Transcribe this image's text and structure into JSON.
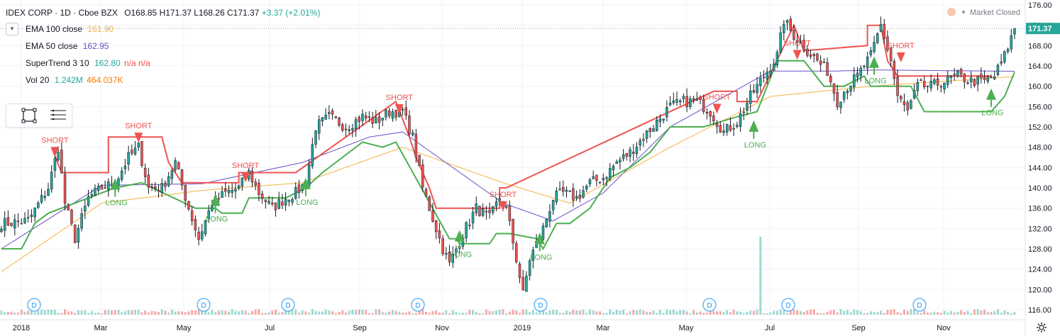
{
  "header": {
    "symbol": "IDEX CORP · 1D · Cboe BZX",
    "open": "O168.85",
    "high": "H171.37",
    "low": "L168.26",
    "close": "C171.37",
    "change": "+3.37 (+2.01%)",
    "status": "Market Closed"
  },
  "indicators": [
    {
      "name": "EMA 100 close",
      "value": "161.90",
      "color": "#f5b342"
    },
    {
      "name": "EMA 50 close",
      "value": "162.95",
      "color": "#6a4fc8"
    },
    {
      "name": "SuperTrend 3 10",
      "value": "162.80",
      "extra": "n/a n/a",
      "color": "#26a69a",
      "extra_color": "#ef5350"
    },
    {
      "name": "Vol 20",
      "value": "1.242M",
      "value2": "464.037K",
      "color": "#26a69a",
      "value2_color": "#f57c00"
    }
  ],
  "price_axis": {
    "ticks": [
      "176.00",
      "172.00",
      "168.00",
      "164.00",
      "160.00",
      "156.00",
      "152.00",
      "148.00",
      "144.00",
      "140.00",
      "136.00",
      "132.00",
      "128.00",
      "124.00",
      "120.00",
      "116.00"
    ],
    "last_price": "171.37",
    "last_color": "#26a69a"
  },
  "time_axis": {
    "labels": [
      "2018",
      "Mar",
      "May",
      "Jul",
      "Sep",
      "Nov",
      "2019",
      "Mar",
      "May",
      "Jul",
      "Sep",
      "Nov"
    ]
  },
  "signals": {
    "short_label": "SHORT",
    "long_label": "LONG",
    "shorts": [
      {
        "day": 16,
        "price": 147.5
      },
      {
        "day": 41,
        "price": 150.3
      },
      {
        "day": 73,
        "price": 142.5
      },
      {
        "day": 119,
        "price": 155.9
      },
      {
        "day": 150,
        "price": 136.8
      },
      {
        "day": 214,
        "price": 156.0
      },
      {
        "day": 238,
        "price": 166.6
      },
      {
        "day": 269,
        "price": 166.1
      }
    ],
    "longs": [
      {
        "day": 34,
        "price": 140.2
      },
      {
        "day": 64,
        "price": 137.0
      },
      {
        "day": 91,
        "price": 140.3
      },
      {
        "day": 137,
        "price": 130.0
      },
      {
        "day": 161,
        "price": 129.5
      },
      {
        "day": 225,
        "price": 151.6
      },
      {
        "day": 261,
        "price": 164.2
      },
      {
        "day": 296,
        "price": 157.9
      }
    ]
  },
  "dividend_markers": {
    "label": "D",
    "days": [
      10,
      61,
      86,
      126,
      163,
      215,
      239,
      278
    ]
  },
  "chart_data": {
    "type": "candlestick",
    "title": "IDEX CORP · 1D · Cboe BZX",
    "ylim": [
      115,
      177
    ],
    "x_start": "2018-01",
    "last_close": 171.37,
    "close_anchors": [
      [
        0,
        133
      ],
      [
        8,
        133.5
      ],
      [
        14,
        140
      ],
      [
        17,
        148
      ],
      [
        19,
        137
      ],
      [
        22,
        130
      ],
      [
        26,
        138
      ],
      [
        30,
        140
      ],
      [
        34,
        141
      ],
      [
        38,
        146
      ],
      [
        41,
        148
      ],
      [
        44,
        140
      ],
      [
        48,
        140
      ],
      [
        52,
        145
      ],
      [
        56,
        136
      ],
      [
        59,
        130
      ],
      [
        63,
        137
      ],
      [
        67,
        139
      ],
      [
        71,
        140
      ],
      [
        74,
        143
      ],
      [
        77,
        139
      ],
      [
        81,
        136
      ],
      [
        85,
        138
      ],
      [
        88,
        139
      ],
      [
        91,
        141
      ],
      [
        94,
        152
      ],
      [
        98,
        154
      ],
      [
        103,
        152
      ],
      [
        108,
        154
      ],
      [
        112,
        153
      ],
      [
        116,
        155
      ],
      [
        120,
        155
      ],
      [
        123,
        150
      ],
      [
        126,
        140
      ],
      [
        129,
        134
      ],
      [
        132,
        128
      ],
      [
        134,
        125
      ],
      [
        138,
        131
      ],
      [
        142,
        136
      ],
      [
        146,
        134
      ],
      [
        149,
        138
      ],
      [
        151,
        136
      ],
      [
        154,
        126
      ],
      [
        156,
        119
      ],
      [
        158,
        126
      ],
      [
        162,
        132
      ],
      [
        165,
        138
      ],
      [
        168,
        139
      ],
      [
        172,
        138
      ],
      [
        176,
        141
      ],
      [
        180,
        142
      ],
      [
        184,
        145
      ],
      [
        188,
        147
      ],
      [
        192,
        150
      ],
      [
        196,
        153
      ],
      [
        200,
        156
      ],
      [
        204,
        157
      ],
      [
        208,
        157
      ],
      [
        212,
        155
      ],
      [
        216,
        151
      ],
      [
        220,
        153
      ],
      [
        224,
        158
      ],
      [
        228,
        162
      ],
      [
        232,
        166
      ],
      [
        234,
        173
      ],
      [
        237,
        170
      ],
      [
        241,
        167
      ],
      [
        244,
        165
      ],
      [
        247,
        163
      ],
      [
        250,
        157
      ],
      [
        253,
        160
      ],
      [
        256,
        162
      ],
      [
        260,
        166
      ],
      [
        263,
        172
      ],
      [
        266,
        165
      ],
      [
        268,
        158
      ],
      [
        271,
        155
      ],
      [
        274,
        160
      ],
      [
        278,
        160
      ],
      [
        282,
        161
      ],
      [
        286,
        162
      ],
      [
        290,
        161
      ],
      [
        294,
        161
      ],
      [
        297,
        162
      ],
      [
        300,
        166
      ],
      [
        303,
        171.37
      ]
    ],
    "ema100": [
      [
        0,
        123.5
      ],
      [
        30,
        137
      ],
      [
        60,
        139.5
      ],
      [
        90,
        141
      ],
      [
        120,
        148
      ],
      [
        150,
        141
      ],
      [
        170,
        137
      ],
      [
        200,
        148
      ],
      [
        230,
        158
      ],
      [
        260,
        160
      ],
      [
        303,
        161.9
      ]
    ],
    "ema50": [
      [
        0,
        128
      ],
      [
        30,
        140.5
      ],
      [
        60,
        140.8
      ],
      [
        90,
        145
      ],
      [
        110,
        150
      ],
      [
        120,
        151
      ],
      [
        150,
        137
      ],
      [
        165,
        133.5
      ],
      [
        180,
        139
      ],
      [
        200,
        152
      ],
      [
        230,
        163
      ],
      [
        250,
        163
      ],
      [
        262,
        163.2
      ],
      [
        303,
        162.95
      ]
    ],
    "supertrend_short": [
      [
        15,
        148
      ],
      [
        18,
        143
      ],
      [
        32,
        143
      ],
      [
        32,
        150
      ],
      [
        37,
        150
      ],
      [
        48,
        150
      ],
      [
        50,
        145
      ],
      [
        54,
        141
      ],
      [
        63,
        141
      ],
      [
        71,
        141
      ],
      [
        71,
        143
      ],
      [
        88,
        143
      ],
      [
        118,
        157
      ],
      [
        122,
        150
      ],
      [
        124,
        146
      ],
      [
        128,
        140
      ],
      [
        130,
        136
      ],
      [
        136,
        136
      ],
      [
        149,
        136
      ],
      [
        149,
        140
      ],
      [
        151,
        140
      ],
      [
        213,
        159
      ],
      [
        220,
        159
      ],
      [
        220,
        157
      ],
      [
        226,
        157
      ],
      [
        237,
        172
      ],
      [
        240,
        167
      ],
      [
        259,
        168
      ],
      [
        259,
        172
      ],
      [
        263,
        172
      ],
      [
        265,
        165
      ],
      [
        268,
        162
      ],
      [
        296,
        162
      ]
    ],
    "supertrend_long": [
      [
        0,
        128
      ],
      [
        6,
        128
      ],
      [
        10,
        133
      ],
      [
        14,
        135
      ],
      [
        34,
        140
      ],
      [
        42,
        141
      ],
      [
        58,
        136
      ],
      [
        64,
        136
      ],
      [
        66,
        135
      ],
      [
        72,
        135
      ],
      [
        74,
        138
      ],
      [
        85,
        138
      ],
      [
        91,
        140
      ],
      [
        96,
        143
      ],
      [
        108,
        149
      ],
      [
        114,
        148
      ],
      [
        118,
        149
      ],
      [
        134,
        130
      ],
      [
        136,
        130
      ],
      [
        137,
        129
      ],
      [
        146,
        129
      ],
      [
        148,
        131
      ],
      [
        152,
        131
      ],
      [
        160,
        130
      ],
      [
        162,
        128
      ],
      [
        166,
        133
      ],
      [
        170,
        133
      ],
      [
        176,
        136
      ],
      [
        182,
        142
      ],
      [
        188,
        144
      ],
      [
        194,
        147
      ],
      [
        200,
        152
      ],
      [
        210,
        152
      ],
      [
        220,
        154
      ],
      [
        226,
        155
      ],
      [
        232,
        165
      ],
      [
        240,
        165
      ],
      [
        246,
        160
      ],
      [
        252,
        160
      ],
      [
        258,
        162
      ],
      [
        260,
        160
      ],
      [
        272,
        160
      ],
      [
        276,
        155
      ],
      [
        290,
        155
      ],
      [
        296,
        155
      ],
      [
        300,
        158
      ],
      [
        303,
        162.8
      ]
    ]
  }
}
